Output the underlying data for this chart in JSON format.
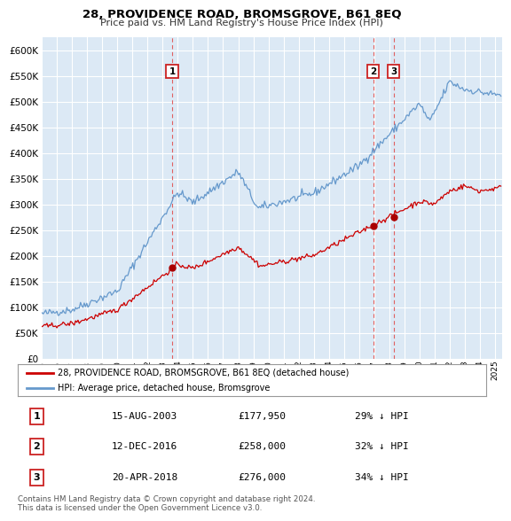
{
  "title": "28, PROVIDENCE ROAD, BROMSGROVE, B61 8EQ",
  "subtitle": "Price paid vs. HM Land Registry's House Price Index (HPI)",
  "ylim": [
    0,
    625000
  ],
  "yticks": [
    0,
    50000,
    100000,
    150000,
    200000,
    250000,
    300000,
    350000,
    400000,
    450000,
    500000,
    550000,
    600000
  ],
  "xlim_start": 1995.0,
  "xlim_end": 2025.5,
  "background_color": "#ffffff",
  "plot_bg_color": "#dce9f5",
  "grid_color": "#ffffff",
  "sale_points": [
    {
      "date": 2003.62,
      "price": 177950,
      "label": "1"
    },
    {
      "date": 2016.95,
      "price": 258000,
      "label": "2"
    },
    {
      "date": 2018.3,
      "price": 276000,
      "label": "3"
    }
  ],
  "vline_dates": [
    2003.62,
    2016.95,
    2018.3
  ],
  "vline_color": "#e06060",
  "sale_marker_color": "#aa0000",
  "hpi_line_color": "#6699cc",
  "sale_line_color": "#cc0000",
  "legend_entries": [
    "28, PROVIDENCE ROAD, BROMSGROVE, B61 8EQ (detached house)",
    "HPI: Average price, detached house, Bromsgrove"
  ],
  "table_entries": [
    {
      "num": "1",
      "date": "15-AUG-2003",
      "price": "£177,950",
      "pct": "29% ↓ HPI"
    },
    {
      "num": "2",
      "date": "12-DEC-2016",
      "price": "£258,000",
      "pct": "32% ↓ HPI"
    },
    {
      "num": "3",
      "date": "20-APR-2018",
      "price": "£276,000",
      "pct": "34% ↓ HPI"
    }
  ],
  "footer": "Contains HM Land Registry data © Crown copyright and database right 2024.\nThis data is licensed under the Open Government Licence v3.0.",
  "xtick_years": [
    1995,
    1996,
    1997,
    1998,
    1999,
    2000,
    2001,
    2002,
    2003,
    2004,
    2005,
    2006,
    2007,
    2008,
    2009,
    2010,
    2011,
    2012,
    2013,
    2014,
    2015,
    2016,
    2017,
    2018,
    2019,
    2020,
    2021,
    2022,
    2023,
    2024,
    2025
  ]
}
